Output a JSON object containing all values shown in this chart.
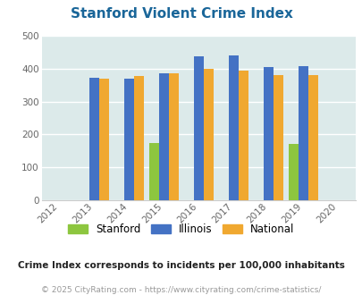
{
  "title": "Stanford Violent Crime Index",
  "years": [
    2013,
    2014,
    2015,
    2016,
    2017,
    2018,
    2019
  ],
  "stanford": [
    0,
    0,
    175,
    0,
    0,
    0,
    172
  ],
  "illinois": [
    373,
    369,
    384,
    438,
    439,
    405,
    408
  ],
  "national": [
    368,
    376,
    384,
    398,
    394,
    381,
    381
  ],
  "stanford_color": "#8dc63f",
  "illinois_color": "#4472c4",
  "national_color": "#f0a830",
  "bg_color": "#dceaea",
  "title_color": "#1a6699",
  "xlim": [
    2011.5,
    2020.5
  ],
  "ylim": [
    0,
    500
  ],
  "yticks": [
    0,
    100,
    200,
    300,
    400,
    500
  ],
  "footnote": "Crime Index corresponds to incidents per 100,000 inhabitants",
  "copyright": "© 2025 CityRating.com - https://www.cityrating.com/crime-statistics/",
  "footnote_color": "#222222",
  "copyright_color": "#999999",
  "bar_width": 0.28,
  "xtick_years": [
    2012,
    2013,
    2014,
    2015,
    2016,
    2017,
    2018,
    2019,
    2020
  ]
}
